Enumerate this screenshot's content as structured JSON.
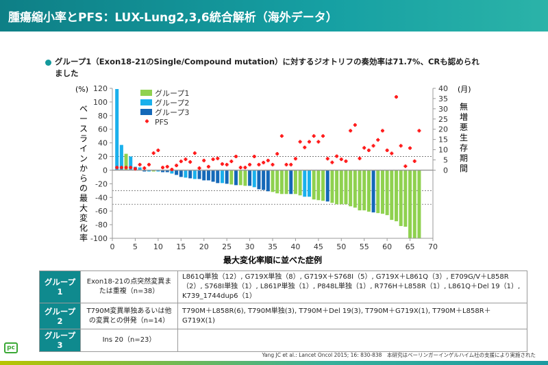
{
  "header": {
    "title": "腫瘍縮小率とPFS：LUX-Lung2,3,6統合解析（海外データ）"
  },
  "bullet": {
    "text": "グループ1（Exon18-21のSingle/Compound mutation）に対するジオトリフの奏効率は71.7%、CRも認められました"
  },
  "chart_data": {
    "type": "bar",
    "xlabel": "最大変化率順に並べた症例",
    "ylabel": "ベースラインからの最大変化率",
    "yunit": "(%)",
    "y2label": "無増悪生存期間",
    "y2unit": "(月)",
    "ylim": [
      -100,
      120
    ],
    "y2lim": [
      0,
      40
    ],
    "xlim": [
      0,
      70
    ],
    "xticks": [
      0,
      5,
      10,
      15,
      20,
      25,
      30,
      35,
      40,
      45,
      50,
      55,
      60,
      65,
      70
    ],
    "yticks": [
      120,
      100,
      80,
      60,
      40,
      20,
      0,
      -20,
      -40,
      -60,
      -80,
      -100
    ],
    "y2ticks": [
      40,
      35,
      30,
      25,
      20,
      15,
      10,
      5,
      0
    ],
    "reference_lines": [
      20,
      -30,
      -50
    ],
    "legend_position": "top-left",
    "colors": {
      "グループ1": "#8fd14f",
      "グループ2": "#1ab0ec",
      "グループ3": "#1468b8",
      "PFS": "#ff1a1a"
    },
    "legend": [
      "グループ1",
      "グループ2",
      "グループ3",
      "PFS"
    ],
    "groups": [
      2,
      2,
      1,
      2,
      2,
      2,
      3,
      2,
      1,
      2,
      3,
      3,
      2,
      3,
      3,
      2,
      3,
      2,
      3,
      3,
      3,
      3,
      3,
      2,
      3,
      1,
      3,
      1,
      1,
      3,
      2,
      3,
      3,
      3,
      1,
      1,
      1,
      1,
      3,
      1,
      1,
      2,
      2,
      1,
      1,
      1,
      3,
      1,
      1,
      1,
      1,
      1,
      1,
      1,
      1,
      1,
      3,
      1,
      1,
      1,
      1,
      1,
      1,
      1,
      1,
      1,
      1
    ],
    "values": [
      119,
      37,
      24,
      20,
      5,
      4,
      -2,
      -2,
      -2,
      -2,
      -3,
      -3,
      -5,
      -7,
      -10,
      -11,
      -12,
      -13,
      -13,
      -15,
      -15,
      -17,
      -19,
      -19,
      -20,
      -21,
      -22,
      -22,
      -23,
      -23,
      -25,
      -28,
      -29,
      -31,
      -32,
      -34,
      -35,
      -35,
      -35,
      -35,
      -37,
      -39,
      -39,
      -43,
      -44,
      -45,
      -46,
      -48,
      -50,
      -50,
      -50,
      -53,
      -55,
      -59,
      -59,
      -61,
      -62,
      -63,
      -64,
      -66,
      -73,
      -75,
      -82,
      -83,
      -100,
      -100,
      -100
    ],
    "pfs": [
      1.3,
      1.3,
      1.3,
      1.3,
      0.7,
      2.7,
      1,
      2.7,
      8.3,
      9.7,
      1.3,
      1.7,
      0.3,
      2.3,
      4.3,
      5.3,
      4,
      8.3,
      1,
      4.7,
      1.7,
      5.3,
      5.7,
      3,
      2.7,
      4.3,
      6.7,
      1.3,
      1.3,
      2.7,
      6.7,
      2.7,
      3.7,
      4.7,
      2.7,
      8,
      16.7,
      2.7,
      2.7,
      5.6,
      13.9,
      11.1,
      13.9,
      16.7,
      13.9,
      16.7,
      5.6,
      3.8,
      6.8,
      5.3,
      4.4,
      19.3,
      22.1,
      5.7,
      10.9,
      9.7,
      11.9,
      14.8,
      19.3,
      9.7,
      8.2,
      35.8,
      11.9,
      1.9,
      10.8,
      4.4,
      19.3
    ]
  },
  "table": {
    "rows": [
      {
        "group": "グループ1",
        "desc": "Exon18-21の点突然変異または重複（n=38）",
        "detail": "L861Q単独（12）, G719X単独（8）, G719X＋S768I（5）, G719X＋L861Q（3）, E709G/V＋L858R（2）, S768I単独（1）, L861P単独（1）, P848L単独（1）, R776H＋L858R（1）, L861Q＋Del 19（1）, K739_1744dup6（1）"
      },
      {
        "group": "グループ2",
        "desc": "T790M変異単独あるいは他の変異との併発（n=14）",
        "detail": "T790M＋L858R(6), T790M単独(3), T790M＋Del 19(3), T790M＋G719X(1), T790M＋L858R＋G719X(1)"
      },
      {
        "group": "グループ3",
        "desc": "Ins 20（n=23）",
        "detail": ""
      }
    ]
  },
  "footer": {
    "citation": "Yang JC et al.: Lancet Oncol 2015; 16: 830-838　本研究はベーリンガーインゲルハイム社の支援により実施された",
    "logo": "pc"
  }
}
